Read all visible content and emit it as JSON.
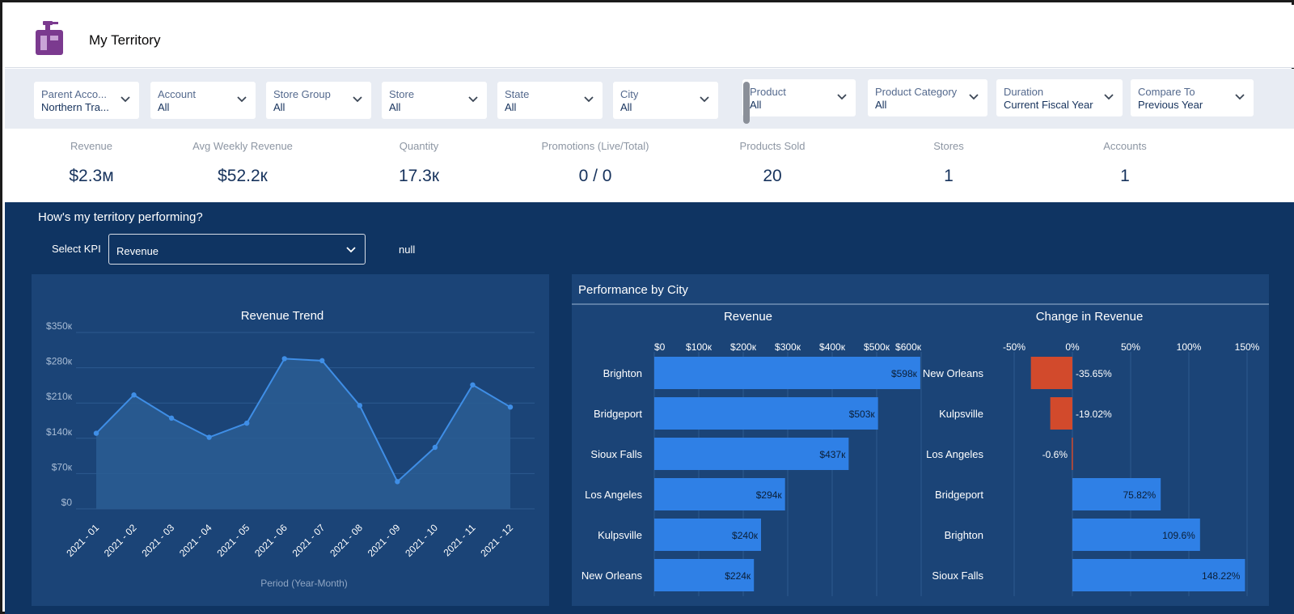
{
  "app": {
    "title": "My Territory",
    "logo_icon": "spray-bottle-icon",
    "logo_color": "#7b3a8f"
  },
  "filters": [
    {
      "label": "Parent Acco...",
      "value": "Northern Tra..."
    },
    {
      "label": "Account",
      "value": "All"
    },
    {
      "label": "Store Group",
      "value": "All"
    },
    {
      "label": "Store",
      "value": "All"
    },
    {
      "label": "State",
      "value": "All"
    },
    {
      "label": "City",
      "value": "All"
    },
    {
      "label": "Product",
      "value": "All"
    },
    {
      "label": "Product Category",
      "value": "All"
    },
    {
      "label": "Duration",
      "value": "Current Fiscal Year"
    },
    {
      "label": "Compare To",
      "value": "Previous Year"
    }
  ],
  "kpis": [
    {
      "label": "Revenue",
      "value": "$2.3м"
    },
    {
      "label": "Avg Weekly Revenue",
      "value": "$52.2к"
    },
    {
      "label": "Quantity",
      "value": "17.3к"
    },
    {
      "label": "Promotions (Live/Total)",
      "value": "0 / 0"
    },
    {
      "label": "Products Sold",
      "value": "20"
    },
    {
      "label": "Stores",
      "value": "1"
    },
    {
      "label": "Accounts",
      "value": "1"
    }
  ],
  "dashboard": {
    "heading": "How's my territory performing?",
    "select_kpi_label": "Select KPI",
    "select_kpi_value": "Revenue",
    "null_text": "null",
    "colors": {
      "background": "#0f3462",
      "panel": "#1b4477",
      "line": "#3f8ee6",
      "bar": "#2f80e6",
      "negative": "#d24a2c"
    }
  },
  "chart_data": [
    {
      "type": "line",
      "title": "Revenue Trend",
      "xlabel": "Period (Year-Month)",
      "ylabel": "",
      "x": [
        "2021 - 01",
        "2021 - 02",
        "2021 - 03",
        "2021 - 04",
        "2021 - 05",
        "2021 - 06",
        "2021 - 07",
        "2021 - 08",
        "2021 - 09",
        "2021 - 10",
        "2021 - 11",
        "2021 - 12"
      ],
      "values": [
        150000,
        226000,
        180000,
        142000,
        170000,
        298000,
        294000,
        205000,
        54000,
        122000,
        246000,
        202000
      ],
      "ylim": [
        0,
        350000
      ],
      "yticks": [
        "$0",
        "$70к",
        "$140к",
        "$210к",
        "$280к",
        "$350к"
      ],
      "grid": true
    },
    {
      "type": "bar",
      "orientation": "horizontal",
      "panel_title": "Performance by City",
      "title": "Revenue",
      "categories": [
        "Brighton",
        "Bridgeport",
        "Sioux Falls",
        "Los Angeles",
        "Kulpsville",
        "New Orleans"
      ],
      "values": [
        598000,
        503000,
        437000,
        294000,
        240000,
        224000
      ],
      "labels": [
        "$598к",
        "$503к",
        "$437к",
        "$294к",
        "$240к",
        "$224к"
      ],
      "xlim": [
        0,
        600000
      ],
      "xticks": [
        "$0",
        "$100к",
        "$200к",
        "$300к",
        "$400к",
        "$500к",
        "$600к"
      ]
    },
    {
      "type": "bar",
      "orientation": "horizontal",
      "title": "Change in Revenue",
      "categories": [
        "New Orleans",
        "Kulpsville",
        "Los Angeles",
        "Bridgeport",
        "Brighton",
        "Sioux Falls"
      ],
      "values": [
        -35.65,
        -19.02,
        -0.6,
        75.82,
        109.6,
        148.22
      ],
      "labels": [
        "-35.65%",
        "-19.02%",
        "-0.6%",
        "75.82%",
        "109.6%",
        "148.22%"
      ],
      "xlim": [
        -50,
        150
      ],
      "xticks": [
        "-50%",
        "0%",
        "50%",
        "100%",
        "150%"
      ]
    }
  ]
}
